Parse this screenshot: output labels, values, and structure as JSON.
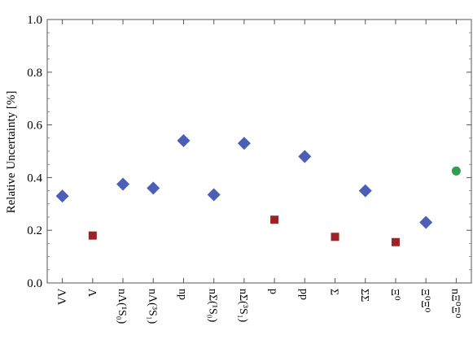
{
  "chart_data": {
    "type": "scatter",
    "title": "",
    "xlabel": "",
    "ylabel": "Relative Uncertainty [%]",
    "ylim": [
      0,
      1.0
    ],
    "yticks": [
      "0.0",
      "0.2",
      "0.4",
      "0.6",
      "0.8",
      "1.0"
    ],
    "ytick_values": [
      0.0,
      0.2,
      0.4,
      0.6,
      0.8,
      1.0
    ],
    "grid": false,
    "categories": [
      "ΛΛ",
      "Λ",
      "nΛ(¹S₀)",
      "nΛ(³S₁)",
      "np",
      "nΣ(¹S₀)",
      "nΣ(³S₁)",
      "p",
      "pp",
      "Σ",
      "ΣΣ",
      "Ξ⁰",
      "Ξ⁰Ξ⁰",
      "nΞ⁰Ξ⁰"
    ],
    "points": [
      {
        "category": "ΛΛ",
        "value": 0.33,
        "marker": "diamond",
        "color": "#4a5fb5"
      },
      {
        "category": "Λ",
        "value": 0.18,
        "marker": "square",
        "color": "#9b2226"
      },
      {
        "category": "nΛ(¹S₀)",
        "value": 0.375,
        "marker": "diamond",
        "color": "#4a5fb5"
      },
      {
        "category": "nΛ(³S₁)",
        "value": 0.36,
        "marker": "diamond",
        "color": "#4a5fb5"
      },
      {
        "category": "np",
        "value": 0.54,
        "marker": "diamond",
        "color": "#4a5fb5"
      },
      {
        "category": "nΣ(¹S₀)",
        "value": 0.335,
        "marker": "diamond",
        "color": "#4a5fb5"
      },
      {
        "category": "nΣ(³S₁)",
        "value": 0.53,
        "marker": "diamond",
        "color": "#4a5fb5"
      },
      {
        "category": "p",
        "value": 0.24,
        "marker": "square",
        "color": "#9b2226"
      },
      {
        "category": "pp",
        "value": 0.48,
        "marker": "diamond",
        "color": "#4a5fb5"
      },
      {
        "category": "Σ",
        "value": 0.175,
        "marker": "square",
        "color": "#9b2226"
      },
      {
        "category": "ΣΣ",
        "value": 0.35,
        "marker": "diamond",
        "color": "#4a5fb5"
      },
      {
        "category": "Ξ⁰",
        "value": 0.155,
        "marker": "square",
        "color": "#9b2226"
      },
      {
        "category": "Ξ⁰Ξ⁰",
        "value": 0.23,
        "marker": "diamond",
        "color": "#4a5fb5"
      },
      {
        "category": "nΞ⁰Ξ⁰",
        "value": 0.425,
        "marker": "circle",
        "color": "#2e9e4f"
      }
    ]
  }
}
